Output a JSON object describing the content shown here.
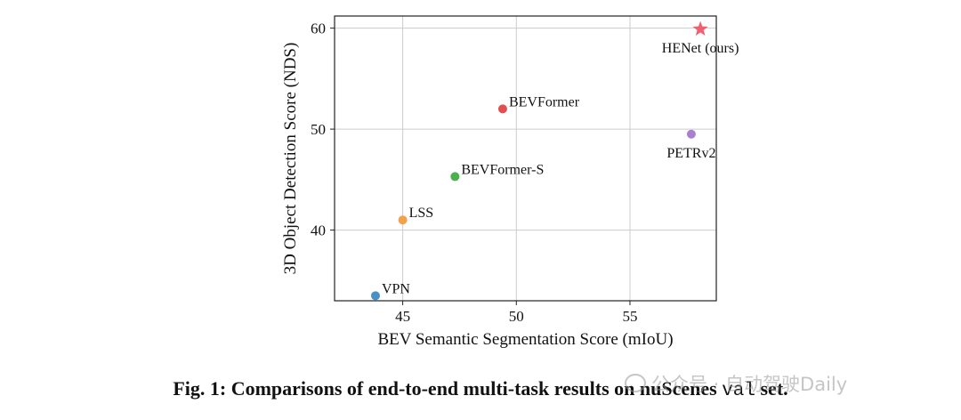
{
  "chart_data": {
    "type": "scatter",
    "xlabel": "BEV Semantic Segmentation Score (mIoU)",
    "ylabel": "3D Object Detection Score (NDS)",
    "xlim": [
      42.0,
      58.8
    ],
    "ylim": [
      33.0,
      61.2
    ],
    "xticks": [
      45,
      50,
      55
    ],
    "yticks": [
      40,
      50,
      60
    ],
    "grid": true,
    "points": [
      {
        "label": "VPN",
        "x": 43.8,
        "y": 33.5,
        "color": "#4a90c8",
        "marker": "circle",
        "label_pos": "right"
      },
      {
        "label": "LSS",
        "x": 45.0,
        "y": 41.0,
        "color": "#f5a04a",
        "marker": "circle",
        "label_pos": "right"
      },
      {
        "label": "BEVFormer-S",
        "x": 47.3,
        "y": 45.3,
        "color": "#4caf50",
        "marker": "circle",
        "label_pos": "right"
      },
      {
        "label": "BEVFormer",
        "x": 49.4,
        "y": 52.0,
        "color": "#e05050",
        "marker": "circle",
        "label_pos": "right"
      },
      {
        "label": "PETRv2",
        "x": 57.7,
        "y": 49.5,
        "color": "#a980d0",
        "marker": "circle",
        "label_pos": "below"
      },
      {
        "label": "HENet (ours)",
        "x": 58.1,
        "y": 59.9,
        "color": "#f06070",
        "marker": "star",
        "label_pos": "below"
      }
    ]
  },
  "caption": {
    "prefix": "Fig. 1: Comparisons of end-to-end multi-task results on nuScenes ",
    "mono": "val",
    "suffix": " set."
  },
  "watermark": {
    "text": "公众号 · 自动驾驶Daily"
  }
}
